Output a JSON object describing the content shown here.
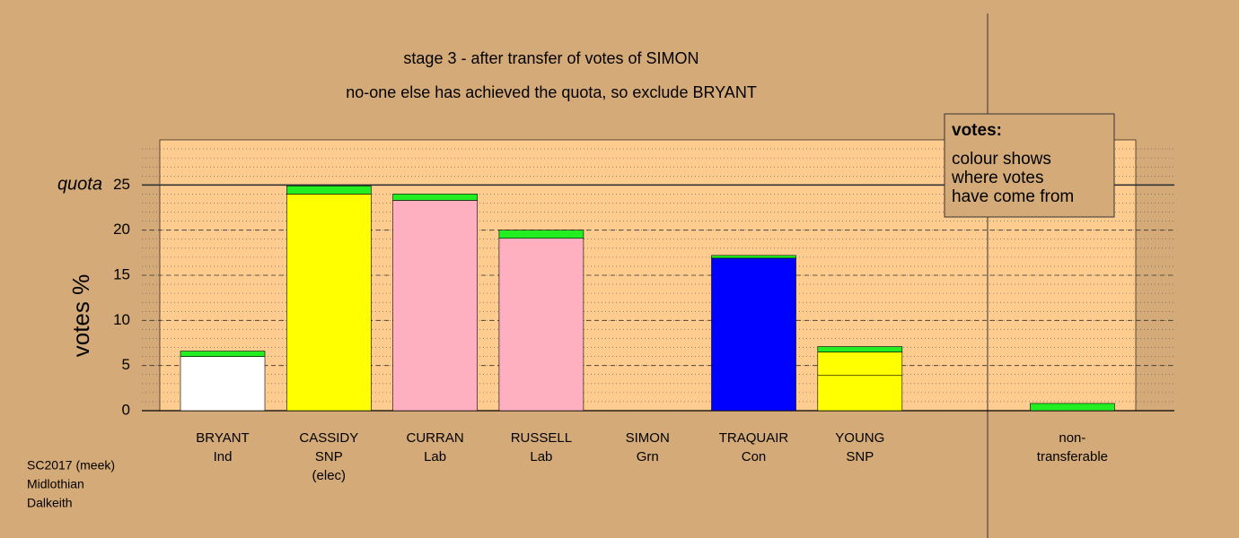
{
  "chart_data": {
    "type": "stacked-bar",
    "title": "stage 3 - after transfer of votes of SIMON",
    "subtitle": "no-one else has achieved the quota, so exclude BRYANT",
    "ylabel": "votes %",
    "quota_label": "quota",
    "quota": 25,
    "ylim": [
      0,
      30
    ],
    "yticks": [
      0,
      5,
      10,
      15,
      20,
      25
    ],
    "grid": true,
    "bars": [
      {
        "label": [
          "BRYANT",
          "Ind"
        ],
        "segments": [
          {
            "color": "#ffffff",
            "value": 6.0
          },
          {
            "color": "#22ee22",
            "value": 0.6
          }
        ]
      },
      {
        "label": [
          "CASSIDY",
          "SNP",
          "(elec)"
        ],
        "segments": [
          {
            "color": "#ffff00",
            "value": 24.0
          },
          {
            "color": "#22ee22",
            "value": 0.9
          }
        ]
      },
      {
        "label": [
          "CURRAN",
          "Lab"
        ],
        "segments": [
          {
            "color": "#ffb0c0",
            "value": 23.3
          },
          {
            "color": "#22ee22",
            "value": 0.7
          }
        ]
      },
      {
        "label": [
          "RUSSELL",
          "Lab"
        ],
        "segments": [
          {
            "color": "#ffb0c0",
            "value": 19.1
          },
          {
            "color": "#22ee22",
            "value": 0.9
          }
        ]
      },
      {
        "label": [
          "SIMON",
          "Grn"
        ],
        "segments": []
      },
      {
        "label": [
          "TRAQUAIR",
          "Con"
        ],
        "segments": [
          {
            "color": "#0000ff",
            "value": 16.9
          },
          {
            "color": "#22ee22",
            "value": 0.3
          }
        ]
      },
      {
        "label": [
          "YOUNG",
          "SNP"
        ],
        "segments": [
          {
            "color": "#ffff00",
            "value": 3.9
          },
          {
            "color": "#ffff00",
            "value": 2.6
          },
          {
            "color": "#22ee22",
            "value": 0.6
          }
        ]
      },
      {
        "label": [
          "non-",
          "transferable"
        ],
        "segments": [
          {
            "color": "#22ee22",
            "value": 0.8
          }
        ]
      }
    ],
    "legend": {
      "title": "votes:",
      "lines": [
        "colour shows",
        "where votes",
        "have come from"
      ]
    },
    "footer": [
      "SC2017 (meek)",
      "Midlothian",
      "Dalkeith"
    ]
  }
}
